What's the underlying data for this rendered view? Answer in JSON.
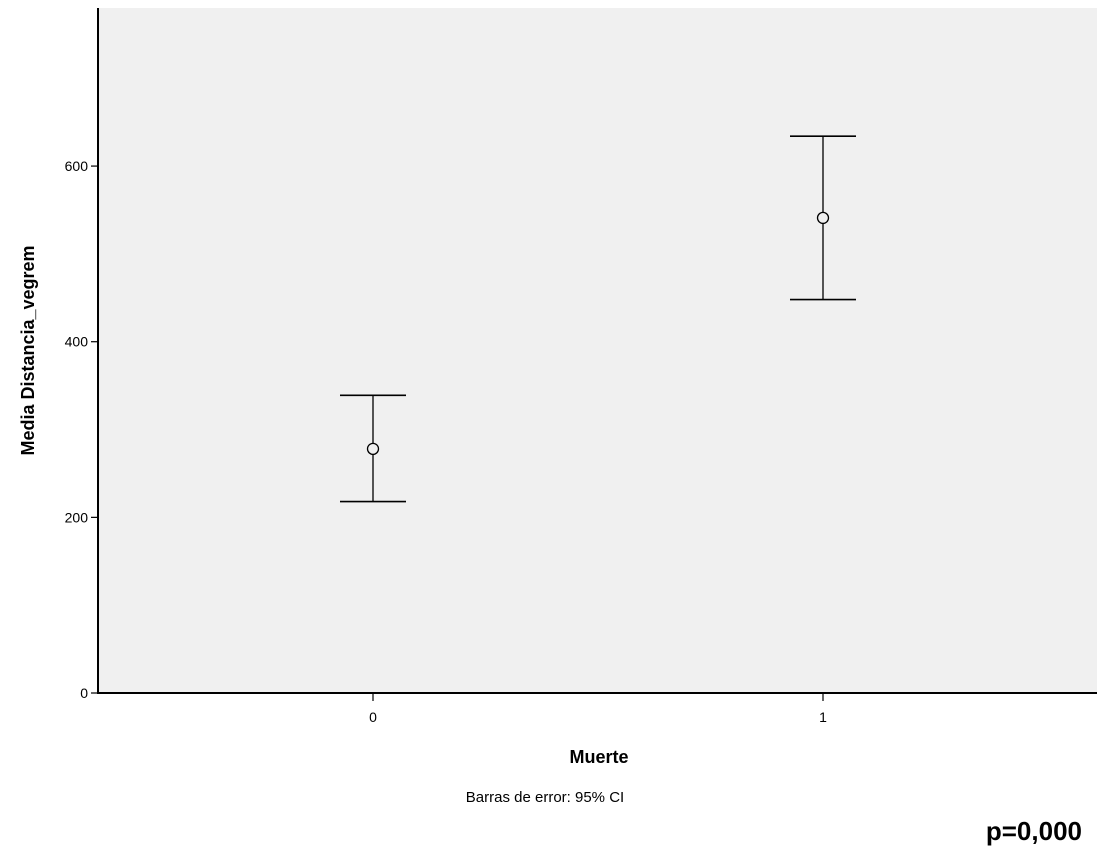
{
  "chart_data": {
    "type": "scatter",
    "chart_kind": "error-bar",
    "categories": [
      "0",
      "1"
    ],
    "series": [
      {
        "points": [
          {
            "x": "0",
            "mean": 278,
            "ci_low": 218,
            "ci_high": 339
          },
          {
            "x": "1",
            "mean": 541,
            "ci_low": 448,
            "ci_high": 634
          }
        ]
      }
    ],
    "xlabel": "Muerte",
    "ylabel": "Media Distancia_vegrem",
    "ylim": [
      0,
      780
    ],
    "yticks": [
      0,
      200,
      400,
      600
    ],
    "grid": false,
    "footnote": "Barras de error: 95% CI",
    "annotation": "p=0,000",
    "colors": {
      "plot_background": "#f0f0f0",
      "marks": "#000000"
    }
  }
}
